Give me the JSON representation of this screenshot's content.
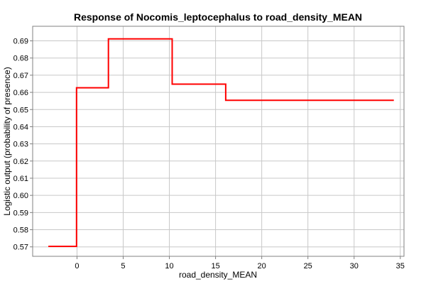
{
  "chart_data": {
    "type": "line",
    "title": "Response of Nocomis_leptocephalus to road_density_MEAN",
    "xlabel": "road_density_MEAN",
    "ylabel": "Logistic output (probability of presence)",
    "xlim": [
      -4.8,
      35.4
    ],
    "ylim": [
      0.5645,
      0.6985
    ],
    "xticks": [
      0,
      5,
      10,
      15,
      20,
      25,
      30,
      35
    ],
    "yticks": [
      0.57,
      0.58,
      0.59,
      0.6,
      0.61,
      0.62,
      0.63,
      0.64,
      0.65,
      0.66,
      0.67,
      0.68,
      0.69
    ],
    "grid": true,
    "series": [
      {
        "color": "#ff0000",
        "step": true,
        "x": [
          -3.1,
          -0.05,
          -0.05,
          3.4,
          3.4,
          10.3,
          10.3,
          16.1,
          16.1,
          34.3
        ],
        "y": [
          0.5703,
          0.5703,
          0.6627,
          0.6627,
          0.6912,
          0.6912,
          0.6648,
          0.6648,
          0.6554,
          0.6554
        ]
      }
    ]
  }
}
